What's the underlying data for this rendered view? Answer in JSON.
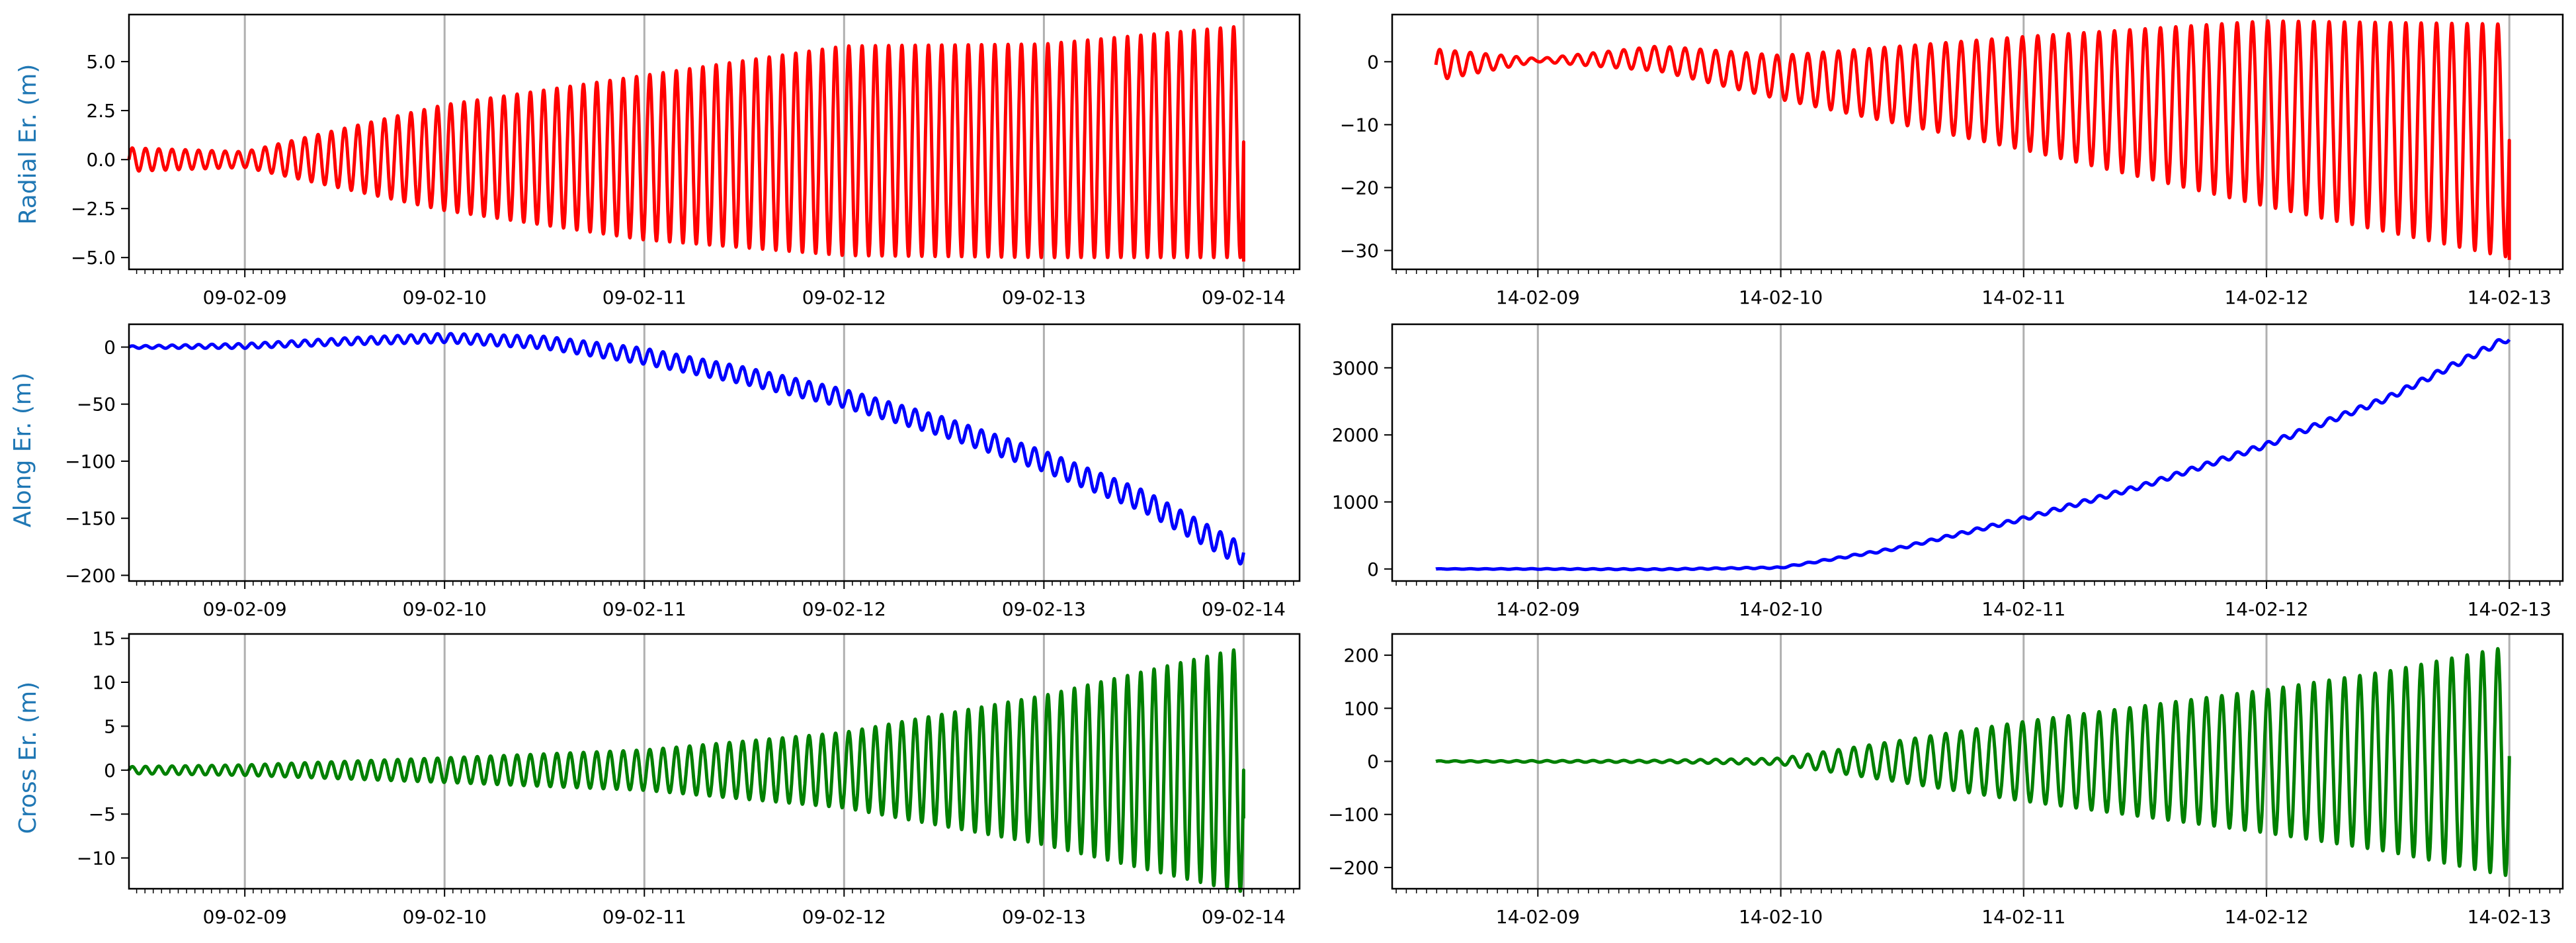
{
  "figure": {
    "rows": [
      {
        "ylabel": "Radial Er. (m)"
      },
      {
        "ylabel": "Along Er. (m)"
      },
      {
        "ylabel": "Cross Er. (m)"
      }
    ]
  },
  "chart_data": [
    {
      "id": "radial-left",
      "type": "line",
      "row": 0,
      "col": 0,
      "title": "",
      "xlabel": "",
      "ylabel": "Radial Er. (m)",
      "color": "#ff0000",
      "grid": "x-major",
      "xlim": [
        -0.58,
        5.28
      ],
      "ylim": [
        -5.6,
        7.4
      ],
      "x_ticks": [
        {
          "v": 0,
          "label": "09-02-09"
        },
        {
          "v": 1,
          "label": "09-02-10"
        },
        {
          "v": 2,
          "label": "09-02-11"
        },
        {
          "v": 3,
          "label": "09-02-12"
        },
        {
          "v": 4,
          "label": "09-02-13"
        },
        {
          "v": 5,
          "label": "09-02-14"
        }
      ],
      "y_ticks": [
        {
          "v": 5,
          "label": "5.0"
        },
        {
          "v": 2.5,
          "label": "2.5"
        },
        {
          "v": 0,
          "label": "0.0"
        },
        {
          "v": -2.5,
          "label": "−2.5"
        },
        {
          "v": -5,
          "label": "−5.0"
        }
      ],
      "series": [
        {
          "name": "Radial error",
          "x_start": -0.58,
          "x_end": 5.0,
          "oscillation_cycles": 84,
          "upper_envelope": [
            [
              -0.58,
              0.6
            ],
            [
              0,
              0.4
            ],
            [
              1,
              2.8
            ],
            [
              2,
              4.3
            ],
            [
              3,
              5.8
            ],
            [
              4,
              5.9
            ],
            [
              4.97,
              6.8
            ]
          ],
          "lower_envelope": [
            [
              -0.58,
              -0.6
            ],
            [
              0,
              -0.4
            ],
            [
              1,
              -2.6
            ],
            [
              2,
              -4.1
            ],
            [
              3,
              -4.9
            ],
            [
              4,
              -5.0
            ],
            [
              4.97,
              -5.0
            ]
          ],
          "end_value": -5.2
        }
      ]
    },
    {
      "id": "radial-right",
      "type": "line",
      "row": 0,
      "col": 1,
      "title": "",
      "xlabel": "",
      "ylabel": "",
      "color": "#ff0000",
      "grid": "x-major",
      "xlim": [
        -0.6,
        4.22
      ],
      "ylim": [
        -33,
        7.5
      ],
      "x_ticks": [
        {
          "v": 0,
          "label": "14-02-09"
        },
        {
          "v": 1,
          "label": "14-02-10"
        },
        {
          "v": 2,
          "label": "14-02-11"
        },
        {
          "v": 3,
          "label": "14-02-12"
        },
        {
          "v": 4,
          "label": "14-02-13"
        }
      ],
      "y_ticks": [
        {
          "v": 0,
          "label": "0"
        },
        {
          "v": -10,
          "label": "−10"
        },
        {
          "v": -20,
          "label": "−20"
        },
        {
          "v": -30,
          "label": "−30"
        }
      ],
      "series": [
        {
          "name": "Radial error",
          "x_start": -0.42,
          "x_end": 4.0,
          "oscillation_cycles": 70,
          "upper_envelope": [
            [
              -0.42,
              2.0
            ],
            [
              0,
              0.5
            ],
            [
              0.5,
              2.5
            ],
            [
              1,
              1.0
            ],
            [
              2,
              4.0
            ],
            [
              3,
              6.5
            ],
            [
              3.98,
              6.0
            ]
          ],
          "lower_envelope": [
            [
              -0.42,
              -3.0
            ],
            [
              0,
              0.0
            ],
            [
              0.5,
              -1.5
            ],
            [
              1,
              -6.0
            ],
            [
              2,
              -14.0
            ],
            [
              3,
              -23.0
            ],
            [
              3.98,
              -31.0
            ]
          ],
          "end_value": -31.5
        }
      ]
    },
    {
      "id": "along-left",
      "type": "line",
      "row": 1,
      "col": 0,
      "title": "",
      "xlabel": "",
      "ylabel": "Along Er. (m)",
      "color": "#0000ff",
      "grid": "x-major",
      "xlim": [
        -0.58,
        5.28
      ],
      "ylim": [
        -205,
        20
      ],
      "x_ticks": [
        {
          "v": 0,
          "label": "09-02-09"
        },
        {
          "v": 1,
          "label": "09-02-10"
        },
        {
          "v": 2,
          "label": "09-02-11"
        },
        {
          "v": 3,
          "label": "09-02-12"
        },
        {
          "v": 4,
          "label": "09-02-13"
        },
        {
          "v": 5,
          "label": "09-02-14"
        }
      ],
      "y_ticks": [
        {
          "v": 0,
          "label": "0"
        },
        {
          "v": -50,
          "label": "−50"
        },
        {
          "v": -100,
          "label": "−100"
        },
        {
          "v": -150,
          "label": "−150"
        },
        {
          "v": -200,
          "label": "−200"
        }
      ],
      "series": [
        {
          "name": "Along error",
          "x_start": -0.58,
          "x_end": 5.0,
          "oscillation_cycles": 84,
          "trend": [
            [
              -0.58,
              0
            ],
            [
              0,
              1
            ],
            [
              0.5,
              5
            ],
            [
              1,
              8
            ],
            [
              1.5,
              4
            ],
            [
              2,
              -8
            ],
            [
              2.5,
              -25
            ],
            [
              3,
              -45
            ],
            [
              3.5,
              -70
            ],
            [
              4,
              -100
            ],
            [
              4.5,
              -135
            ],
            [
              4.97,
              -180
            ]
          ],
          "amplitude": [
            [
              -0.58,
              1
            ],
            [
              1,
              4
            ],
            [
              2,
              7
            ],
            [
              3,
              8
            ],
            [
              4,
              9
            ],
            [
              4.97,
              10
            ]
          ],
          "end_value": -180
        }
      ]
    },
    {
      "id": "along-right",
      "type": "line",
      "row": 1,
      "col": 1,
      "title": "",
      "xlabel": "",
      "ylabel": "",
      "color": "#0000ff",
      "grid": "x-major",
      "xlim": [
        -0.6,
        4.22
      ],
      "ylim": [
        -180,
        3650
      ],
      "x_ticks": [
        {
          "v": 0,
          "label": "14-02-09"
        },
        {
          "v": 1,
          "label": "14-02-10"
        },
        {
          "v": 2,
          "label": "14-02-11"
        },
        {
          "v": 3,
          "label": "14-02-12"
        },
        {
          "v": 4,
          "label": "14-02-13"
        }
      ],
      "y_ticks": [
        {
          "v": 3000,
          "label": "3000"
        },
        {
          "v": 2000,
          "label": "2000"
        },
        {
          "v": 1000,
          "label": "1000"
        },
        {
          "v": 0,
          "label": "0"
        }
      ],
      "series": [
        {
          "name": "Along error",
          "x_start": -0.42,
          "x_end": 4.0,
          "oscillation_cycles": 70,
          "trend": [
            [
              -0.42,
              0
            ],
            [
              0,
              0
            ],
            [
              0.5,
              -5
            ],
            [
              1,
              20
            ],
            [
              1.5,
              320
            ],
            [
              2,
              750
            ],
            [
              2.5,
              1250
            ],
            [
              3,
              1850
            ],
            [
              3.5,
              2550
            ],
            [
              3.98,
              3420
            ]
          ],
          "amplitude": [
            [
              -0.42,
              3
            ],
            [
              1,
              10
            ],
            [
              2,
              30
            ],
            [
              3,
              40
            ],
            [
              3.98,
              45
            ]
          ],
          "end_value": 3420
        }
      ]
    },
    {
      "id": "cross-left",
      "type": "line",
      "row": 2,
      "col": 0,
      "title": "",
      "xlabel": "",
      "ylabel": "Cross Er. (m)",
      "color": "#008000",
      "grid": "x-major",
      "xlim": [
        -0.58,
        5.28
      ],
      "ylim": [
        -13.5,
        15.5
      ],
      "x_ticks": [
        {
          "v": 0,
          "label": "09-02-09"
        },
        {
          "v": 1,
          "label": "09-02-10"
        },
        {
          "v": 2,
          "label": "09-02-11"
        },
        {
          "v": 3,
          "label": "09-02-12"
        },
        {
          "v": 4,
          "label": "09-02-13"
        },
        {
          "v": 5,
          "label": "09-02-14"
        }
      ],
      "y_ticks": [
        {
          "v": 15,
          "label": "15"
        },
        {
          "v": 10,
          "label": "10"
        },
        {
          "v": 5,
          "label": "5"
        },
        {
          "v": 0,
          "label": "0"
        },
        {
          "v": -5,
          "label": "−5"
        },
        {
          "v": -10,
          "label": "−10"
        }
      ],
      "series": [
        {
          "name": "Cross error",
          "x_start": -0.58,
          "x_end": 5.0,
          "oscillation_cycles": 84,
          "trend": [
            [
              -0.58,
              0
            ],
            [
              4.97,
              0
            ]
          ],
          "amplitude": [
            [
              -0.58,
              0.4
            ],
            [
              0,
              0.6
            ],
            [
              1,
              1.4
            ],
            [
              2,
              2.3
            ],
            [
              3,
              4.3
            ],
            [
              4,
              8.5
            ],
            [
              4.97,
              13.8
            ]
          ],
          "end_value": -5.5
        }
      ]
    },
    {
      "id": "cross-right",
      "type": "line",
      "row": 2,
      "col": 1,
      "title": "",
      "xlabel": "",
      "ylabel": "",
      "color": "#008000",
      "grid": "x-major",
      "xlim": [
        -0.6,
        4.22
      ],
      "ylim": [
        -240,
        240
      ],
      "x_ticks": [
        {
          "v": 0,
          "label": "14-02-09"
        },
        {
          "v": 1,
          "label": "14-02-10"
        },
        {
          "v": 2,
          "label": "14-02-11"
        },
        {
          "v": 3,
          "label": "14-02-12"
        },
        {
          "v": 4,
          "label": "14-02-13"
        }
      ],
      "y_ticks": [
        {
          "v": 200,
          "label": "200"
        },
        {
          "v": 100,
          "label": "100"
        },
        {
          "v": 0,
          "label": "0"
        },
        {
          "v": -100,
          "label": "−100"
        },
        {
          "v": -200,
          "label": "−200"
        }
      ],
      "series": [
        {
          "name": "Cross error",
          "x_start": -0.42,
          "x_end": 4.0,
          "oscillation_cycles": 70,
          "trend": [
            [
              -0.42,
              0
            ],
            [
              3.98,
              0
            ]
          ],
          "amplitude": [
            [
              -0.42,
              1
            ],
            [
              0.5,
              2
            ],
            [
              1,
              6
            ],
            [
              1.5,
              40
            ],
            [
              2,
              75
            ],
            [
              2.5,
              105
            ],
            [
              3,
              135
            ],
            [
              3.5,
              170
            ],
            [
              3.98,
              215
            ]
          ],
          "end_value": 10
        }
      ]
    }
  ]
}
